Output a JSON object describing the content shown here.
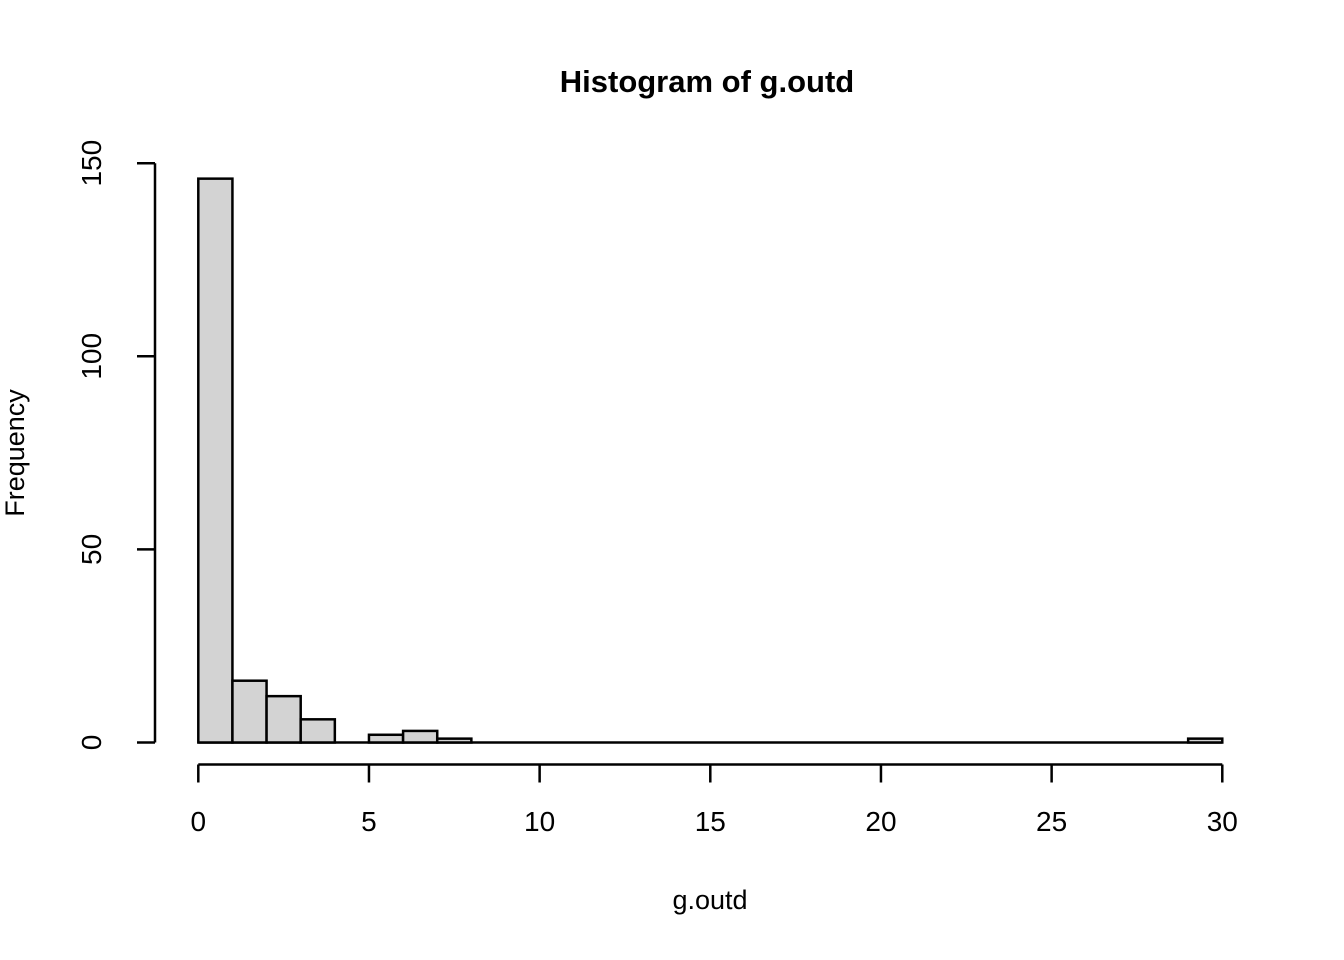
{
  "chart_data": {
    "type": "bar",
    "subtype": "histogram",
    "title": "Histogram of g.outd",
    "xlabel": "g.outd",
    "ylabel": "Frequency",
    "bin_start": 0,
    "bin_width": 1,
    "frequencies": [
      146,
      16,
      12,
      6,
      0,
      2,
      3,
      1,
      0,
      0,
      0,
      0,
      0,
      0,
      0,
      0,
      0,
      0,
      0,
      0,
      0,
      0,
      0,
      0,
      0,
      0,
      0,
      0,
      0,
      1
    ],
    "x_ticks": [
      0,
      5,
      10,
      15,
      20,
      25,
      30
    ],
    "y_ticks": [
      0,
      50,
      100,
      150
    ],
    "xlim": [
      0,
      30
    ],
    "ylim": [
      0,
      150
    ],
    "grid": false,
    "legend": null,
    "colors": {
      "bar_fill": "#d3d3d3",
      "bar_stroke": "#000000",
      "axis": "#000000",
      "text": "#000000",
      "background": "#ffffff"
    }
  }
}
